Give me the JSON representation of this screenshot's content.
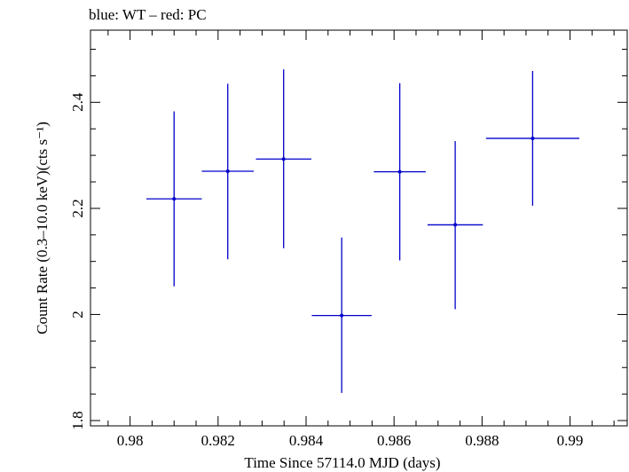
{
  "chart_data": {
    "type": "scatter",
    "title": "blue: WT – red: PC",
    "xlabel": "Time Since 57114.0 MJD (days)",
    "ylabel": "Count Rate (0.3–10.0 keV)(cts s⁻¹)",
    "xlim": [
      0.9791,
      0.9913
    ],
    "ylim": [
      1.79,
      2.536
    ],
    "x_ticks": [
      0.98,
      0.982,
      0.984,
      0.986,
      0.988,
      0.99
    ],
    "x_tick_labels": [
      "0.98",
      "0.982",
      "0.984",
      "0.986",
      "0.988",
      "0.99"
    ],
    "y_ticks": [
      1.8,
      2.0,
      2.2,
      2.4
    ],
    "y_tick_labels": [
      "1.8",
      "2",
      "2.2",
      "2.4"
    ],
    "grid": false,
    "series": [
      {
        "name": "WT",
        "color": "#0000cc",
        "points": [
          {
            "x": 0.981,
            "y": 2.218,
            "xerr": 0.00063,
            "yerr": [
              2.053,
              2.383
            ]
          },
          {
            "x": 0.98222,
            "y": 2.27,
            "xerr": 0.00059,
            "yerr": [
              2.104,
              2.435
            ]
          },
          {
            "x": 0.98349,
            "y": 2.293,
            "xerr": 0.00063,
            "yerr": [
              2.125,
              2.462
            ]
          },
          {
            "x": 0.98481,
            "y": 1.998,
            "xerr": 0.00068,
            "yerr": [
              1.852,
              2.145
            ]
          },
          {
            "x": 0.98613,
            "y": 2.269,
            "xerr": 0.00059,
            "yerr": [
              2.102,
              2.436
            ]
          },
          {
            "x": 0.98739,
            "y": 2.169,
            "xerr": 0.00063,
            "yerr": [
              2.01,
              2.327
            ]
          },
          {
            "x": 0.98915,
            "y": 2.332,
            "xerr": 0.00106,
            "yerr": [
              2.205,
              2.459
            ]
          }
        ]
      }
    ]
  }
}
